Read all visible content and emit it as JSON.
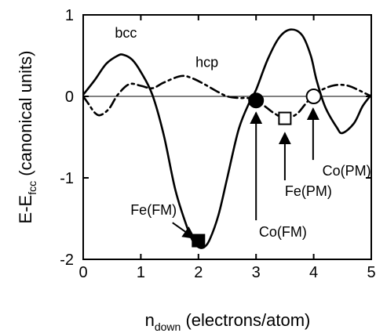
{
  "chart_data": {
    "type": "line",
    "title": "",
    "xlabel": {
      "main": "n",
      "sub": "down",
      "rest": " (electrons/atom)"
    },
    "ylabel": {
      "main": "E-E",
      "sub": "fcc",
      "rest": " (canonical units)"
    },
    "xlim": [
      0,
      5
    ],
    "ylim": [
      -2,
      1
    ],
    "xticks": [
      0,
      1,
      2,
      3,
      4,
      5
    ],
    "xtick_labels": [
      "0",
      "1",
      "2",
      "3",
      "4",
      "5"
    ],
    "yticks": [
      1,
      0,
      -1,
      -2
    ],
    "ytick_labels": [
      "1",
      "0",
      "-1",
      "-2"
    ],
    "grid": false,
    "zero_line": true,
    "series": [
      {
        "name": "bcc",
        "style": "solid",
        "color": "#000000",
        "x": [
          0,
          0.2,
          0.4,
          0.6,
          0.7,
          0.85,
          1.0,
          1.2,
          1.4,
          1.6,
          1.8,
          1.9,
          2.0,
          2.1,
          2.2,
          2.35,
          2.5,
          2.7,
          2.9,
          3.0,
          3.2,
          3.4,
          3.6,
          3.8,
          3.95,
          4.05,
          4.2,
          4.4,
          4.5,
          4.7,
          4.85,
          5.0
        ],
        "y": [
          0.02,
          0.2,
          0.4,
          0.5,
          0.51,
          0.45,
          0.3,
          0.02,
          -0.48,
          -1.15,
          -1.6,
          -1.77,
          -1.85,
          -1.85,
          -1.75,
          -1.45,
          -1.0,
          -0.4,
          -0.05,
          0.08,
          0.45,
          0.72,
          0.82,
          0.75,
          0.5,
          0.2,
          -0.13,
          -0.38,
          -0.45,
          -0.33,
          -0.12,
          0.02
        ]
      },
      {
        "name": "hcp",
        "style": "dashdot",
        "color": "#000000",
        "x": [
          0,
          0.1,
          0.2,
          0.3,
          0.45,
          0.6,
          0.8,
          1.0,
          1.2,
          1.4,
          1.7,
          1.9,
          2.1,
          2.3,
          2.5,
          2.7,
          2.85,
          3.0,
          3.15,
          3.3,
          3.5,
          3.7,
          3.85,
          4.0,
          4.2,
          4.4,
          4.6,
          4.8,
          5.0
        ],
        "y": [
          0.0,
          -0.1,
          -0.2,
          -0.23,
          -0.15,
          0.02,
          0.15,
          0.13,
          0.1,
          0.17,
          0.25,
          0.22,
          0.15,
          0.07,
          0.0,
          -0.02,
          -0.02,
          -0.05,
          -0.12,
          -0.2,
          -0.27,
          -0.22,
          -0.1,
          0.02,
          0.1,
          0.14,
          0.13,
          0.07,
          0.0
        ]
      }
    ],
    "curve_labels": [
      {
        "text": "bcc",
        "x": 0.55,
        "y": 0.72
      },
      {
        "text": "hcp",
        "x": 1.95,
        "y": 0.36
      }
    ],
    "markers": [
      {
        "x": 2.0,
        "y": -1.77,
        "shape": "square",
        "fill": "filled"
      },
      {
        "x": 3.0,
        "y": -0.05,
        "shape": "circle",
        "fill": "filled"
      },
      {
        "x": 3.5,
        "y": -0.27,
        "shape": "square",
        "fill": "open"
      },
      {
        "x": 4.0,
        "y": 0.0,
        "shape": "circle",
        "fill": "open"
      }
    ],
    "annotations": [
      {
        "text": "Fe(FM)",
        "x": 0.82,
        "y": -1.45,
        "arrow_from": [
          1.55,
          -1.55
        ],
        "arrow_to": [
          1.93,
          -1.74
        ]
      },
      {
        "text": "Co(FM)",
        "x": 3.05,
        "y": -1.72,
        "arrow_from": [
          3.0,
          -1.52
        ],
        "arrow_to": [
          3.0,
          -0.2
        ]
      },
      {
        "text": "Fe(PM)",
        "x": 3.5,
        "y": -1.22,
        "arrow_from": [
          3.5,
          -1.03
        ],
        "arrow_to": [
          3.5,
          -0.45
        ]
      },
      {
        "text": "Co(PM)",
        "x": 4.15,
        "y": -0.97,
        "arrow_from": [
          3.99,
          -0.78
        ],
        "arrow_to": [
          3.99,
          -0.15
        ]
      }
    ]
  }
}
